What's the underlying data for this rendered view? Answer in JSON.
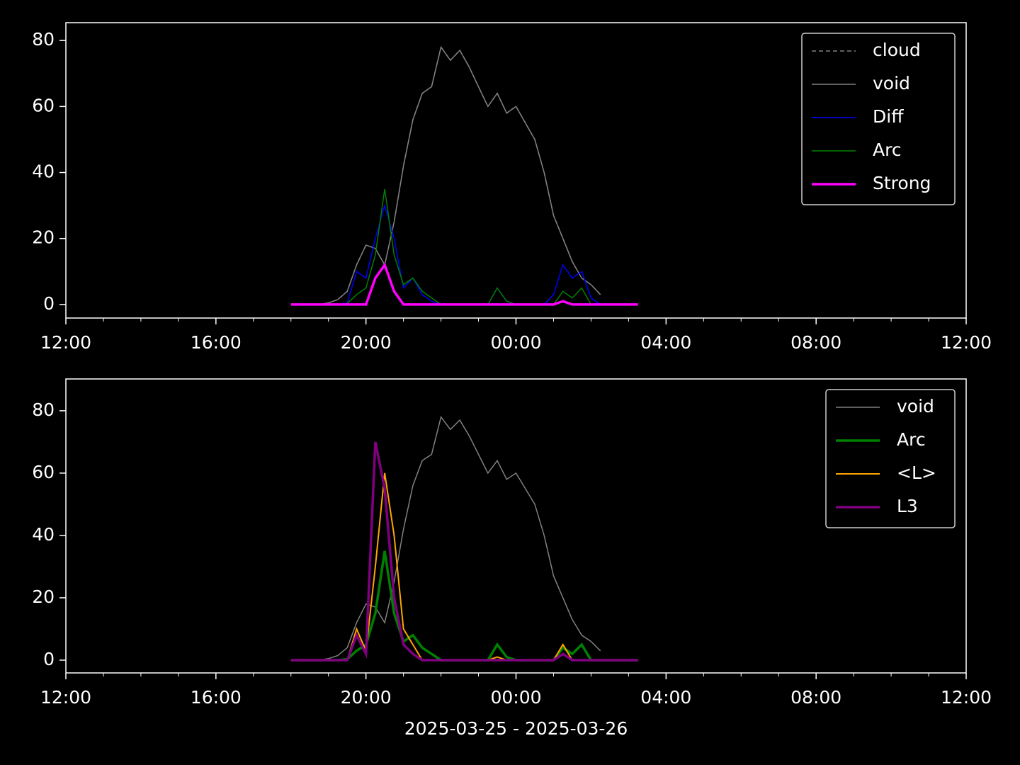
{
  "chart_data": [
    {
      "type": "line",
      "legend": "upper right",
      "x": [
        "18:00",
        "18:15",
        "18:30",
        "18:45",
        "19:00",
        "19:15",
        "19:30",
        "19:45",
        "20:00",
        "20:15",
        "20:30",
        "20:45",
        "21:00",
        "21:15",
        "21:30",
        "21:45",
        "22:00",
        "22:15",
        "22:30",
        "22:45",
        "23:00",
        "23:15",
        "23:30",
        "23:45",
        "00:00",
        "00:15",
        "00:30",
        "00:45",
        "01:00",
        "01:15",
        "01:30",
        "01:45",
        "02:00",
        "02:15",
        "02:30",
        "02:45",
        "03:00",
        "03:15"
      ],
      "xlim": [
        "12:00",
        "12:00"
      ],
      "xticks": [
        "12:00",
        "16:00",
        "20:00",
        "00:00",
        "04:00",
        "08:00",
        "12:00"
      ],
      "ylim": [
        -4.1,
        85.4
      ],
      "yticks": [
        0,
        20,
        40,
        60,
        80
      ],
      "series": [
        {
          "name": "cloud",
          "color": "#808080",
          "style": "dashed",
          "linewidth": 1.5,
          "values": [
            0,
            0,
            0,
            0,
            0.5,
            1.5,
            4,
            12,
            18,
            17,
            12,
            25,
            42,
            56,
            64,
            66,
            78,
            74,
            77,
            72,
            66,
            60,
            64,
            58,
            60,
            55,
            50,
            40,
            27,
            20,
            13,
            8,
            6,
            3,
            null,
            null,
            null,
            null
          ]
        },
        {
          "name": "void",
          "color": "#808080",
          "style": "solid",
          "linewidth": 1.5,
          "values": [
            0,
            0,
            0,
            0,
            0.5,
            1.5,
            4,
            12,
            18,
            17,
            12,
            25,
            42,
            56,
            64,
            66,
            78,
            74,
            77,
            72,
            66,
            60,
            64,
            58,
            60,
            55,
            50,
            40,
            27,
            20,
            13,
            8,
            6,
            3,
            null,
            null,
            null,
            null
          ]
        },
        {
          "name": "Diff",
          "color": "#0000ff",
          "style": "solid",
          "linewidth": 1.5,
          "values": [
            0,
            0,
            0,
            0,
            0,
            0,
            0.5,
            10,
            8,
            20,
            30,
            20,
            5,
            8,
            3,
            1,
            0,
            0,
            0,
            0,
            0,
            0,
            5,
            1,
            0,
            0,
            0,
            0,
            3,
            12,
            8,
            10,
            2,
            0,
            0,
            0,
            0,
            0
          ]
        },
        {
          "name": "Arc",
          "color": "#008000",
          "style": "solid",
          "linewidth": 1.5,
          "values": [
            0,
            0,
            0,
            0,
            0,
            0,
            0.3,
            3,
            5,
            15,
            35,
            15,
            6,
            8,
            4,
            2,
            0,
            0,
            0,
            0,
            0,
            0,
            5,
            1,
            0,
            0,
            0,
            0,
            0,
            4,
            2,
            5,
            0,
            0,
            0,
            0,
            0,
            0
          ]
        },
        {
          "name": "Strong",
          "color": "#ff00ff",
          "style": "solid",
          "linewidth": 3.5,
          "values": [
            0,
            0,
            0,
            0,
            0,
            0,
            0,
            0,
            0,
            8,
            12,
            4,
            0,
            0,
            0,
            0,
            0,
            0,
            0,
            0,
            0,
            0,
            0,
            0,
            0,
            0,
            0,
            0,
            0,
            1,
            0,
            0,
            0,
            0,
            0,
            0,
            0,
            0
          ]
        }
      ]
    },
    {
      "type": "line",
      "legend": "upper right",
      "xlabel": "2025-03-25 - 2025-03-26",
      "x": [
        "18:00",
        "18:15",
        "18:30",
        "18:45",
        "19:00",
        "19:15",
        "19:30",
        "19:45",
        "20:00",
        "20:15",
        "20:30",
        "20:45",
        "21:00",
        "21:15",
        "21:30",
        "21:45",
        "22:00",
        "22:15",
        "22:30",
        "22:45",
        "23:00",
        "23:15",
        "23:30",
        "23:45",
        "00:00",
        "00:15",
        "00:30",
        "00:45",
        "01:00",
        "01:15",
        "01:30",
        "01:45",
        "02:00",
        "02:15",
        "02:30",
        "02:45",
        "03:00",
        "03:15"
      ],
      "xlim": [
        "12:00",
        "12:00"
      ],
      "xticks": [
        "12:00",
        "16:00",
        "20:00",
        "00:00",
        "04:00",
        "08:00",
        "12:00"
      ],
      "ylim": [
        -4.1,
        90.2
      ],
      "yticks": [
        0,
        20,
        40,
        60,
        80
      ],
      "series": [
        {
          "name": "void",
          "color": "#808080",
          "style": "solid",
          "linewidth": 1.5,
          "values": [
            0,
            0,
            0,
            0,
            0.5,
            1.5,
            4,
            12,
            18,
            17,
            12,
            25,
            42,
            56,
            64,
            66,
            78,
            74,
            77,
            72,
            66,
            60,
            64,
            58,
            60,
            55,
            50,
            40,
            27,
            20,
            13,
            8,
            6,
            3,
            null,
            null,
            null,
            null
          ]
        },
        {
          "name": "Arc",
          "color": "#008000",
          "style": "solid",
          "linewidth": 3.5,
          "values": [
            0,
            0,
            0,
            0,
            0,
            0,
            0.3,
            3,
            5,
            15,
            35,
            15,
            6,
            8,
            4,
            2,
            0,
            0,
            0,
            0,
            0,
            0,
            5,
            1,
            0,
            0,
            0,
            0,
            0,
            4,
            2,
            5,
            0,
            0,
            0,
            0,
            0,
            0
          ]
        },
        {
          "name": "<L>",
          "color": "#ffa500",
          "style": "solid",
          "linewidth": 2,
          "values": [
            0,
            0,
            0,
            0,
            0,
            0,
            0,
            10,
            3,
            30,
            60,
            40,
            10,
            5,
            0,
            0,
            0,
            0,
            0,
            0,
            0,
            0,
            1,
            0,
            0,
            0,
            0,
            0,
            0,
            5,
            0,
            0,
            0,
            0,
            0,
            0,
            0,
            0
          ]
        },
        {
          "name": "L3",
          "color": "#800080",
          "style": "solid",
          "linewidth": 3.5,
          "values": [
            0,
            0,
            0,
            0,
            0,
            0,
            0,
            8,
            2,
            70,
            55,
            20,
            5,
            2,
            0,
            0,
            0,
            0,
            0,
            0,
            0,
            0,
            0,
            0,
            0,
            0,
            0,
            0,
            0,
            2,
            0,
            0,
            0,
            0,
            0,
            0,
            0,
            0
          ]
        }
      ]
    }
  ]
}
